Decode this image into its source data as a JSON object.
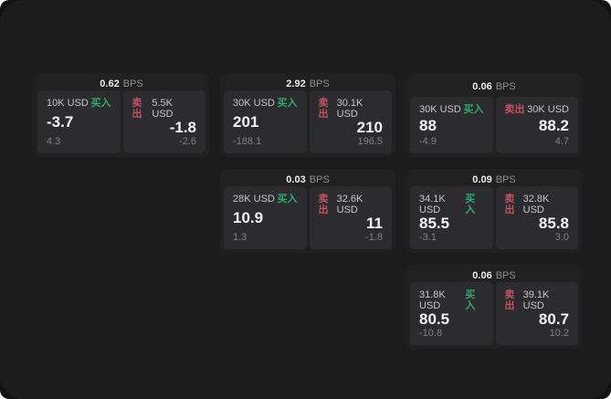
{
  "labels": {
    "bps": "BPS",
    "buy": "买入",
    "sell": "卖出"
  },
  "colors": {
    "buy_green": "#2faa6f",
    "sell_red": "#c05264",
    "surface": "#1c1c1d",
    "card": "#212122",
    "panel": "#2c2c2e"
  },
  "cards": [
    {
      "bps": "0.62",
      "buy": {
        "amount": "10K USD",
        "price": "-3.7",
        "delta": "4.3"
      },
      "sell": {
        "amount": "5.5K USD",
        "price": "-1.8",
        "delta": "-2.6"
      }
    },
    {
      "bps": "2.92",
      "buy": {
        "amount": "30K USD",
        "price": "201",
        "delta": "-188.1"
      },
      "sell": {
        "amount": "30.1K USD",
        "price": "210",
        "delta": "196.5"
      }
    },
    {
      "bps": "0.06",
      "buy": {
        "amount": "30K USD",
        "price": "88",
        "delta": "-4.9"
      },
      "sell": {
        "amount": "30K USD",
        "price": "88.2",
        "delta": "4.7"
      }
    },
    {
      "bps": "0.03",
      "buy": {
        "amount": "28K USD",
        "price": "10.9",
        "delta": "1.3"
      },
      "sell": {
        "amount": "32.6K USD",
        "price": "11",
        "delta": "-1.8"
      }
    },
    {
      "bps": "0.09",
      "buy": {
        "amount": "34.1K USD",
        "price": "85.5",
        "delta": "-3.1"
      },
      "sell": {
        "amount": "32.8K USD",
        "price": "85.8",
        "delta": "3.0"
      }
    },
    {
      "bps": "0.06",
      "buy": {
        "amount": "31.8K USD",
        "price": "80.5",
        "delta": "-10.8"
      },
      "sell": {
        "amount": "39.1K USD",
        "price": "80.7",
        "delta": "10.2"
      }
    }
  ]
}
